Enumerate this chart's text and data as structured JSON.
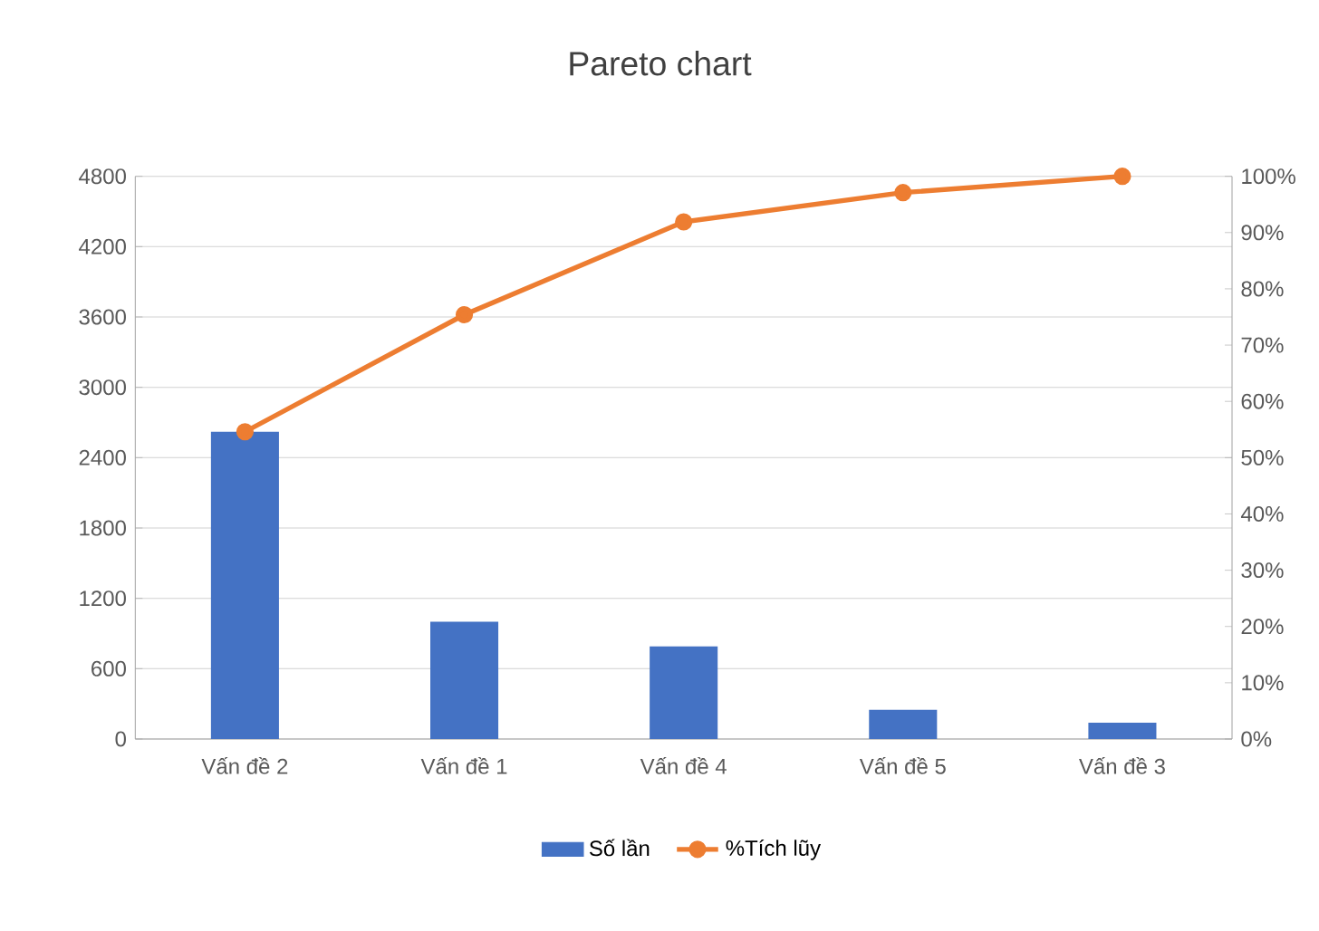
{
  "chart_data": {
    "type": "bar",
    "title": "Pareto chart",
    "categories": [
      "Vấn đề 2",
      "Vấn đề 1",
      "Vấn đề 4",
      "Vấn đề 5",
      "Vấn đề 3"
    ],
    "series": [
      {
        "name": "Số lần",
        "color": "#4472c4",
        "values": [
          2620,
          1000,
          790,
          250,
          140
        ]
      },
      {
        "name": "%Tích lũy",
        "type": "line",
        "axis": "y2",
        "color": "#ed7d31",
        "marker": "circle",
        "values": [
          54.6,
          75.4,
          91.9,
          97.1,
          100
        ]
      }
    ],
    "ylim": [
      0,
      4800
    ],
    "yticks": [
      0,
      600,
      1200,
      1800,
      2400,
      3000,
      3600,
      4200,
      4800
    ],
    "y2lim": [
      0,
      100
    ],
    "y2ticks": [
      {
        "value": 0,
        "label": "0%"
      },
      {
        "value": 10,
        "label": "10%"
      },
      {
        "value": 20,
        "label": "20%"
      },
      {
        "value": 30,
        "label": "30%"
      },
      {
        "value": 40,
        "label": "40%"
      },
      {
        "value": 50,
        "label": "50%"
      },
      {
        "value": 60,
        "label": "60%"
      },
      {
        "value": 70,
        "label": "70%"
      },
      {
        "value": 80,
        "label": "80%"
      },
      {
        "value": 90,
        "label": "90%"
      },
      {
        "value": 100,
        "label": "100%"
      }
    ],
    "grid": "y",
    "legend": "bottom"
  }
}
